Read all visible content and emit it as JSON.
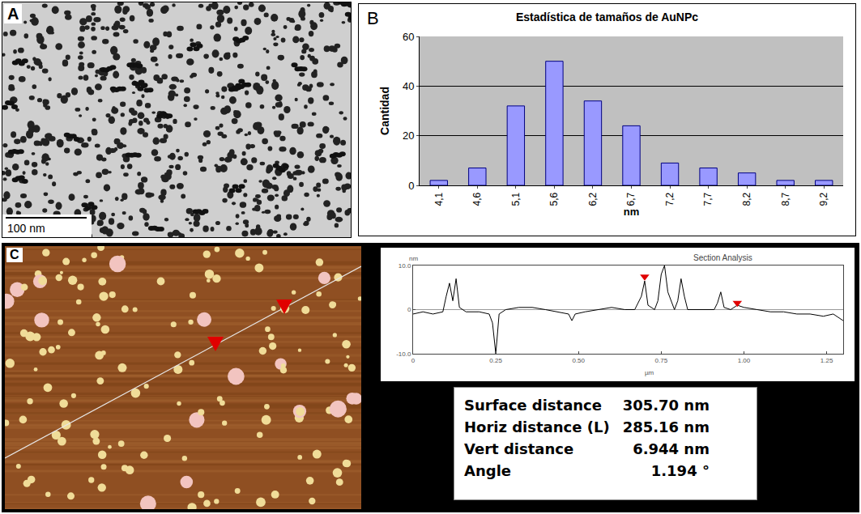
{
  "panels": {
    "A": {
      "label": "A",
      "scale_bar": "100 nm"
    },
    "B": {
      "label": "B"
    },
    "C": {
      "label": "C"
    }
  },
  "chart_data": [
    {
      "type": "bar",
      "title": "Estadística de tamaños de AuNPc",
      "x_label": "nm",
      "y_label": "Cantidad",
      "categories": [
        "4,1",
        "4,6",
        "5,1",
        "5,6",
        "6,2",
        "6,7",
        "7,2",
        "7,7",
        "8,2",
        "8,7",
        "9,2"
      ],
      "values": [
        2,
        7,
        32,
        50,
        34,
        24,
        9,
        7,
        5,
        2,
        2
      ],
      "color": "#9999ff",
      "ylim": [
        0,
        60
      ],
      "yticks": [
        0,
        20,
        40,
        60
      ],
      "grid": true
    },
    {
      "type": "line",
      "title": "Section Analysis",
      "x_label": "µm",
      "y_label": "nm",
      "x": [
        0.0,
        0.03,
        0.06,
        0.09,
        0.1,
        0.11,
        0.12,
        0.13,
        0.14,
        0.16,
        0.2,
        0.23,
        0.24,
        0.25,
        0.26,
        0.28,
        0.32,
        0.36,
        0.4,
        0.44,
        0.47,
        0.48,
        0.49,
        0.52,
        0.56,
        0.6,
        0.64,
        0.67,
        0.69,
        0.7,
        0.71,
        0.73,
        0.74,
        0.75,
        0.76,
        0.77,
        0.79,
        0.8,
        0.81,
        0.82,
        0.83,
        0.85,
        0.88,
        0.91,
        0.92,
        0.93,
        0.94,
        0.96,
        0.98,
        1.0,
        1.04,
        1.08,
        1.12,
        1.16,
        1.2,
        1.24,
        1.27,
        1.3
      ],
      "values": [
        -1,
        -0.5,
        -1,
        -0.5,
        3,
        6,
        2,
        7,
        0.5,
        -0.5,
        -0.5,
        -1,
        -3,
        -10,
        -1,
        0,
        0.5,
        0.5,
        0,
        -0.5,
        -1,
        -2.5,
        -1,
        -0.5,
        0,
        0.5,
        0,
        0,
        3,
        6.5,
        1,
        0,
        2,
        8,
        10,
        4,
        0,
        2,
        7,
        3,
        0,
        0,
        0,
        0,
        1.5,
        4,
        0.5,
        0,
        1,
        0.5,
        0,
        -0.5,
        -0.5,
        -1,
        -1,
        -1.5,
        -1,
        -2.5
      ],
      "color": "#000000",
      "cursors": {
        "x": [
          0.7,
          0.98
        ],
        "values": [
          7.5,
          1.5
        ],
        "color": "#e00000",
        "marker": "triangle-down"
      },
      "xlim": [
        0,
        1.3
      ],
      "xticks": [
        0,
        0.25,
        {
          "value": 0.5,
          "label": "0.50"
        },
        0.75,
        {
          "value": 1,
          "label": "1.00"
        },
        1.25
      ],
      "ylim": [
        -10,
        10
      ],
      "yticks": [
        {
          "value": -10,
          "label": "-10.0"
        },
        0,
        {
          "value": 10,
          "label": "10.0"
        }
      ],
      "grid": false
    }
  ],
  "table": {
    "rows": [
      [
        "Surface distance",
        "305.70 nm"
      ],
      [
        "Horiz distance (L)",
        "285.16 nm"
      ],
      [
        "Vert distance",
        "6.944 nm"
      ],
      [
        "Angle",
        "1.194 °"
      ]
    ]
  }
}
